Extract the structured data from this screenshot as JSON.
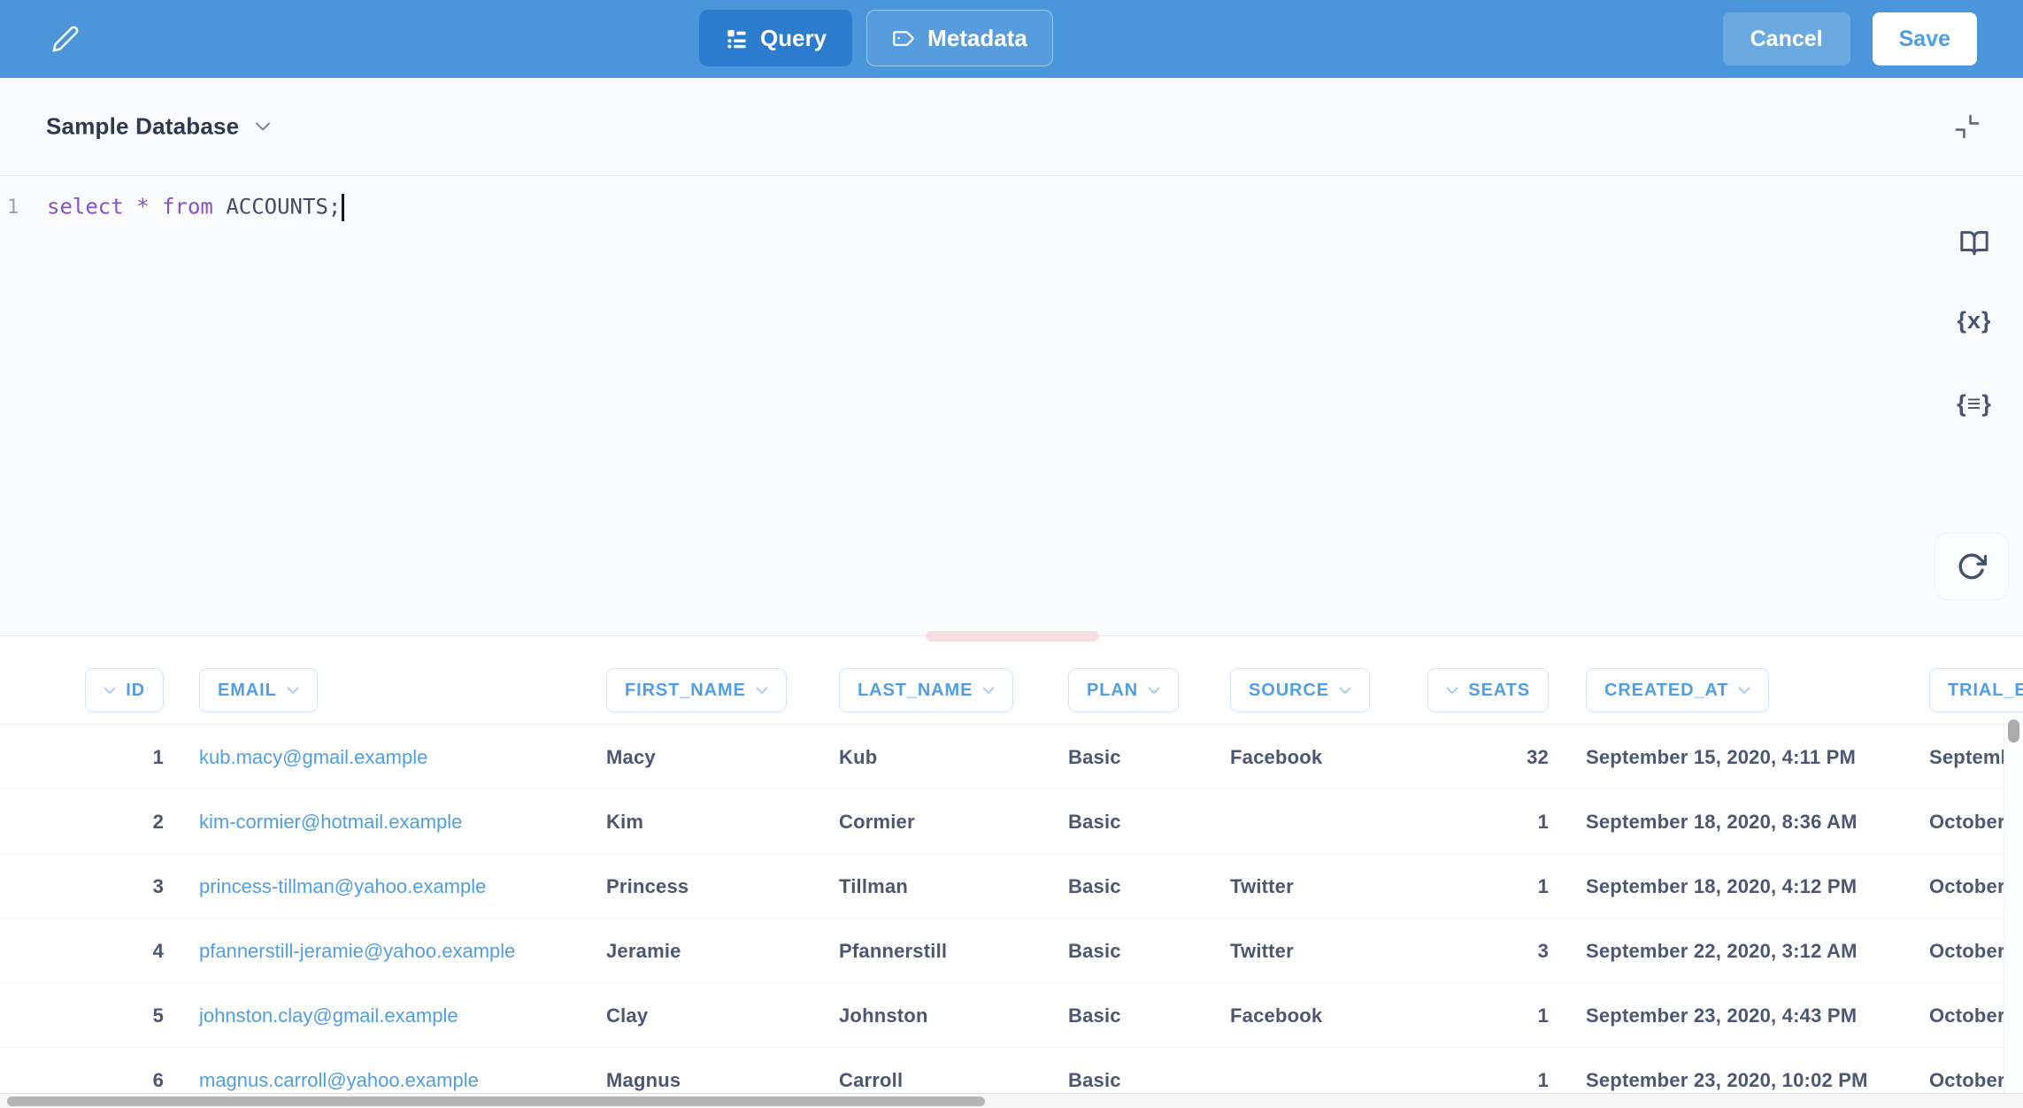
{
  "header": {
    "tabs": [
      {
        "label": "Query",
        "icon": "query-list-icon",
        "active": true
      },
      {
        "label": "Metadata",
        "icon": "metadata-tag-icon",
        "active": false
      }
    ],
    "cancel_label": "Cancel",
    "save_label": "Save"
  },
  "editor": {
    "database_name": "Sample Database",
    "line_number": "1",
    "tokens": [
      {
        "text": "select ",
        "style": "keyword"
      },
      {
        "text": "* ",
        "style": "keyword"
      },
      {
        "text": "from ",
        "style": "keyword"
      },
      {
        "text": "ACCOUNTS;",
        "style": "identifier"
      }
    ],
    "variables_icon_label": "{x}",
    "snippets_icon_label": "{≡}"
  },
  "table": {
    "columns": [
      {
        "label": "ID",
        "chevron": "left"
      },
      {
        "label": "EMAIL",
        "chevron": "right"
      },
      {
        "label": "FIRST_NAME",
        "chevron": "right"
      },
      {
        "label": "LAST_NAME",
        "chevron": "right"
      },
      {
        "label": "PLAN",
        "chevron": "right"
      },
      {
        "label": "SOURCE",
        "chevron": "right"
      },
      {
        "label": "SEATS",
        "chevron": "left"
      },
      {
        "label": "CREATED_AT",
        "chevron": "right"
      },
      {
        "label": "TRIAL_ENDS_AT",
        "chevron": "right"
      }
    ],
    "rows": [
      [
        "1",
        "kub.macy@gmail.example",
        "Macy",
        "Kub",
        "Basic",
        "Facebook",
        "32",
        "September 15, 2020, 4:11 PM",
        "September"
      ],
      [
        "2",
        "kim-cormier@hotmail.example",
        "Kim",
        "Cormier",
        "Basic",
        "",
        "1",
        "September 18, 2020, 8:36 AM",
        "October"
      ],
      [
        "3",
        "princess-tillman@yahoo.example",
        "Princess",
        "Tillman",
        "Basic",
        "Twitter",
        "1",
        "September 18, 2020, 4:12 PM",
        "October"
      ],
      [
        "4",
        "pfannerstill-jeramie@yahoo.example",
        "Jeramie",
        "Pfannerstill",
        "Basic",
        "Twitter",
        "3",
        "September 22, 2020, 3:12 AM",
        "October"
      ],
      [
        "5",
        "johnston.clay@gmail.example",
        "Clay",
        "Johnston",
        "Basic",
        "Facebook",
        "1",
        "September 23, 2020, 4:43 PM",
        "October"
      ],
      [
        "6",
        "magnus.carroll@yahoo.example",
        "Magnus",
        "Carroll",
        "Basic",
        "",
        "1",
        "September 23, 2020, 10:02 PM",
        "October"
      ]
    ]
  },
  "colors": {
    "brand": "#509EE3",
    "header_bg": "#4B96DB",
    "active_tab": "#2B7BCE",
    "keyword": "#8A50C8",
    "identifier": "#414C66",
    "text_dark": "#4C5773",
    "link": "#509EE3",
    "editor_bg": "#F9FBFC",
    "handle_pink": "#F8DFDF"
  }
}
